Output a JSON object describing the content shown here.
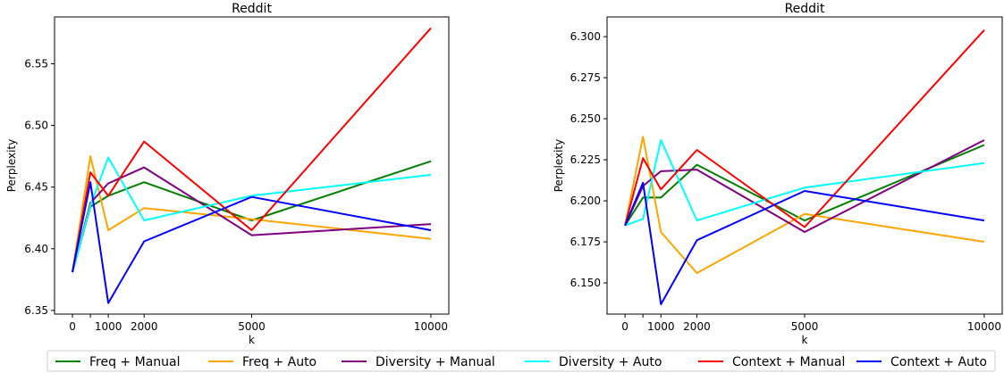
{
  "chart_data": [
    {
      "type": "line",
      "title": "Reddit",
      "xlabel": "k",
      "ylabel": "Perplexity",
      "x": [
        0,
        500,
        1000,
        2000,
        5000,
        10000
      ],
      "xticks": [
        "0",
        "1000",
        "2000",
        "5000",
        "10000"
      ],
      "xtick_values": [
        0,
        1000,
        2000,
        5000,
        10000
      ],
      "xlim": [
        -500,
        10500
      ],
      "ylim": [
        6.347,
        6.588
      ],
      "yticks": [
        "6.35",
        "6.40",
        "6.45",
        "6.50",
        "6.55"
      ],
      "ytick_values": [
        6.35,
        6.4,
        6.45,
        6.5,
        6.55
      ],
      "series": [
        {
          "name": "Freq + Manual",
          "color": "#008000",
          "values": [
            6.381,
            6.434,
            6.443,
            6.454,
            6.423,
            6.471
          ]
        },
        {
          "name": "Freq + Auto",
          "color": "#FFA500",
          "values": [
            6.381,
            6.475,
            6.415,
            6.433,
            6.424,
            6.408
          ]
        },
        {
          "name": "Diversity + Manual",
          "color": "#800080",
          "values": [
            6.381,
            6.437,
            6.453,
            6.466,
            6.411,
            6.42
          ]
        },
        {
          "name": "Diversity + Auto",
          "color": "#00FFFF",
          "values": [
            6.381,
            6.435,
            6.474,
            6.423,
            6.443,
            6.46
          ]
        },
        {
          "name": "Context + Manual",
          "color": "#FF0000",
          "values": [
            6.381,
            6.462,
            6.443,
            6.487,
            6.415,
            6.579
          ]
        },
        {
          "name": "Context + Auto",
          "color": "#0000FF",
          "values": [
            6.381,
            6.454,
            6.356,
            6.406,
            6.442,
            6.415
          ]
        }
      ]
    },
    {
      "type": "line",
      "title": "Reddit",
      "xlabel": "k",
      "ylabel": "Perplexity",
      "x": [
        0,
        500,
        1000,
        2000,
        5000,
        10000
      ],
      "xticks": [
        "0",
        "1000",
        "2000",
        "5000",
        "10000"
      ],
      "xtick_values": [
        0,
        1000,
        2000,
        5000,
        10000
      ],
      "xlim": [
        -500,
        10500
      ],
      "ylim": [
        6.131,
        6.312
      ],
      "yticks": [
        "6.150",
        "6.175",
        "6.200",
        "6.225",
        "6.250",
        "6.275",
        "6.300"
      ],
      "ytick_values": [
        6.15,
        6.175,
        6.2,
        6.225,
        6.25,
        6.275,
        6.3
      ],
      "series": [
        {
          "name": "Freq + Manual",
          "color": "#008000",
          "values": [
            6.185,
            6.202,
            6.202,
            6.222,
            6.188,
            6.234
          ]
        },
        {
          "name": "Freq + Auto",
          "color": "#FFA500",
          "values": [
            6.185,
            6.239,
            6.181,
            6.156,
            6.192,
            6.175
          ]
        },
        {
          "name": "Diversity + Manual",
          "color": "#800080",
          "values": [
            6.185,
            6.209,
            6.218,
            6.219,
            6.181,
            6.237
          ]
        },
        {
          "name": "Diversity + Auto",
          "color": "#00FFFF",
          "values": [
            6.185,
            6.189,
            6.237,
            6.188,
            6.208,
            6.223
          ]
        },
        {
          "name": "Context + Manual",
          "color": "#FF0000",
          "values": [
            6.185,
            6.226,
            6.207,
            6.231,
            6.184,
            6.304
          ]
        },
        {
          "name": "Context + Auto",
          "color": "#0000FF",
          "values": [
            6.185,
            6.211,
            6.137,
            6.176,
            6.206,
            6.188
          ]
        }
      ]
    }
  ],
  "legend": {
    "placement": "bottom",
    "items": [
      {
        "label": "Freq + Manual",
        "color": "#008000"
      },
      {
        "label": "Freq + Auto",
        "color": "#FFA500"
      },
      {
        "label": "Diversity + Manual",
        "color": "#800080"
      },
      {
        "label": "Diversity + Auto",
        "color": "#00FFFF"
      },
      {
        "label": "Context + Manual",
        "color": "#FF0000"
      },
      {
        "label": "Context + Auto",
        "color": "#0000FF"
      }
    ]
  }
}
